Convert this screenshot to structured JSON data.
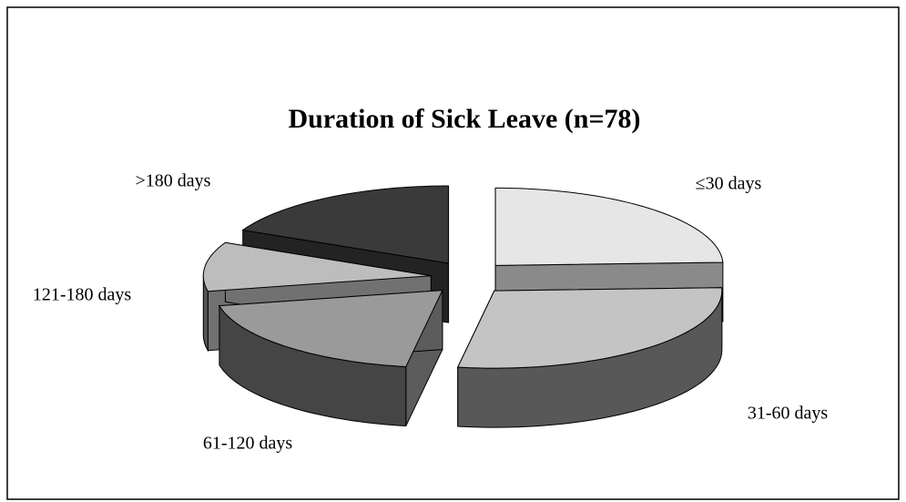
{
  "chart_data": {
    "type": "pie",
    "title": "Duration of Sick Leave (n=78)",
    "categories": [
      "≤30 days",
      "31-60 days",
      "61-120 days",
      "121-180 days",
      ">180 days"
    ],
    "values": [
      19,
      22,
      15,
      8,
      14
    ],
    "colors": [
      "#e6e6e6",
      "#c4c4c4",
      "#9a9a9a",
      "#bdbdbd",
      "#3a3a3a"
    ]
  }
}
